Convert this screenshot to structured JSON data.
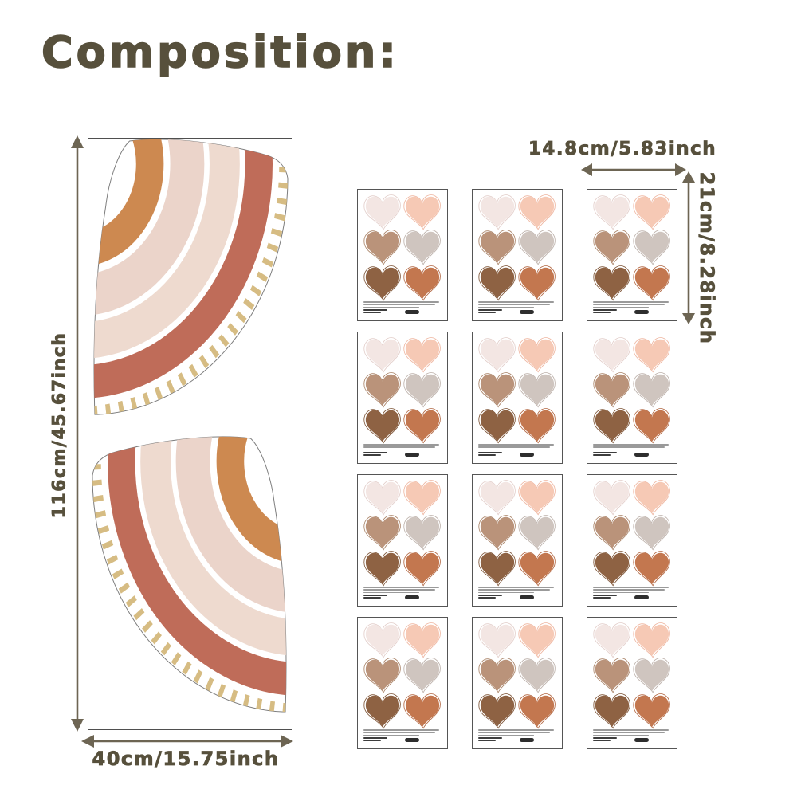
{
  "title": "Composition:",
  "left_panel": {
    "height_label": "116cm/45.67inch",
    "width_label": "40cm/15.75inch"
  },
  "sheet_grid": {
    "width_label": "14.8cm/5.83inch",
    "height_label": "21cm/8.28inch",
    "count": 12,
    "columns": 3,
    "rows": 4,
    "hearts_per_sheet": 6
  },
  "colors": {
    "text": "#57503c",
    "arrow": "#6d6553",
    "panel_border": "#4f4f4f",
    "sheet_border": "#555555",
    "badge": "#2e2e2e",
    "rainbow_stripes": [
      {
        "name": "orange",
        "hex": "#cd8950"
      },
      {
        "name": "blush-pink",
        "hex": "#ebd4ca"
      },
      {
        "name": "cream-pink",
        "hex": "#eedacf"
      },
      {
        "name": "terracotta",
        "hex": "#bf6c59"
      },
      {
        "name": "gold-dashes",
        "hex": "#d6bc83"
      }
    ],
    "rainbow_outline": "#7d7d7d",
    "hearts": [
      {
        "name": "pale-pink",
        "fill": "#f3e6e3",
        "outline": "#e2cdc9"
      },
      {
        "name": "peach",
        "fill": "#f6c9b5",
        "outline": "#eeb49e"
      },
      {
        "name": "tan",
        "fill": "#ba937a",
        "outline": "#a88165"
      },
      {
        "name": "warm-gray",
        "fill": "#cfc5bf",
        "outline": "#bbafa8"
      },
      {
        "name": "brown",
        "fill": "#8e6243",
        "outline": "#7c5234"
      },
      {
        "name": "rust",
        "fill": "#c3774f",
        "outline": "#b16540"
      }
    ]
  }
}
